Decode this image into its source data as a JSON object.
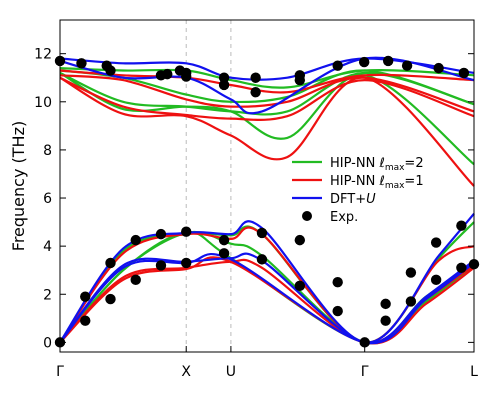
{
  "chart_data": {
    "type": "line",
    "title": "",
    "ylabel": "Frequency (THz)",
    "xlabel": "",
    "ylim": [
      -0.4,
      13.4
    ],
    "yticks": [
      0,
      2,
      4,
      6,
      8,
      10,
      12
    ],
    "x_high_symmetry_points": [
      {
        "label": "Γ",
        "x": 0.0
      },
      {
        "label": "X",
        "x": 1.0
      },
      {
        "label": "U",
        "x": 1.354
      },
      {
        "label": "Γ",
        "x": 2.414
      },
      {
        "label": "L",
        "x": 3.28
      }
    ],
    "vertical_guides_at": [
      1.0,
      1.354
    ],
    "grid": false,
    "legend": {
      "placement": "center-right",
      "entries": [
        {
          "label_main": "HIP-NN ",
          "label_math": "ℓ",
          "label_sub": "max",
          "label_tail": "=2",
          "color": "#22bb22",
          "kind": "line"
        },
        {
          "label_main": "HIP-NN ",
          "label_math": "ℓ",
          "label_sub": "max",
          "label_tail": "=1",
          "color": "#ee1111",
          "kind": "line"
        },
        {
          "label_main": "DFT+",
          "label_math": "U",
          "label_sub": "",
          "label_tail": "",
          "color": "#1111ee",
          "kind": "line"
        },
        {
          "label_main": "Exp.",
          "label_math": "",
          "label_sub": "",
          "label_tail": "",
          "color": "#000000",
          "kind": "marker"
        }
      ]
    },
    "series": [
      {
        "method": "HIP-NN lmax=2",
        "color": "#22bb22",
        "bands": [
          [
            [
              0,
              0
            ],
            [
              0.5,
              3.0
            ],
            [
              1.0,
              4.55
            ],
            [
              1.354,
              3.5
            ],
            [
              2.414,
              0
            ],
            [
              2.9,
              1.7
            ],
            [
              3.28,
              3.2
            ]
          ],
          [
            [
              0,
              0
            ],
            [
              0.5,
              3.0
            ],
            [
              1.0,
              4.55
            ],
            [
              1.354,
              4.1
            ],
            [
              1.6,
              3.6
            ],
            [
              2.414,
              0
            ],
            [
              2.9,
              1.9
            ],
            [
              3.28,
              3.3
            ]
          ],
          [
            [
              0,
              0
            ],
            [
              0.5,
              3.8
            ],
            [
              1.0,
              4.5
            ],
            [
              1.354,
              4.45
            ],
            [
              1.6,
              4.5
            ],
            [
              2.414,
              0
            ],
            [
              3.0,
              3.5
            ],
            [
              3.28,
              5.0
            ]
          ],
          [
            [
              0,
              11.2
            ],
            [
              0.5,
              9.7
            ],
            [
              1.0,
              9.8
            ],
            [
              1.354,
              9.6
            ],
            [
              1.8,
              8.5
            ],
            [
              2.414,
              11.1
            ],
            [
              3.28,
              7.4
            ]
          ],
          [
            [
              0,
              11.2
            ],
            [
              0.5,
              10.0
            ],
            [
              1.0,
              9.8
            ],
            [
              1.354,
              9.6
            ],
            [
              1.8,
              9.6
            ],
            [
              2.414,
              11.2
            ],
            [
              3.28,
              9.9
            ]
          ],
          [
            [
              0,
              11.3
            ],
            [
              0.5,
              11.0
            ],
            [
              1.0,
              10.3
            ],
            [
              1.354,
              10.0
            ],
            [
              1.8,
              10.2
            ],
            [
              2.414,
              11.3
            ],
            [
              3.28,
              9.9
            ]
          ],
          [
            [
              0,
              11.4
            ],
            [
              0.5,
              11.3
            ],
            [
              1.0,
              11.3
            ],
            [
              1.354,
              10.9
            ],
            [
              1.8,
              10.6
            ],
            [
              2.414,
              11.3
            ],
            [
              3.28,
              11.1
            ]
          ]
        ]
      },
      {
        "method": "HIP-NN lmax=1",
        "color": "#ee1111",
        "bands": [
          [
            [
              0,
              0
            ],
            [
              0.5,
              2.6
            ],
            [
              1.0,
              3.05
            ],
            [
              1.354,
              3.35
            ],
            [
              2.414,
              0
            ],
            [
              2.9,
              1.6
            ],
            [
              3.28,
              3.1
            ]
          ],
          [
            [
              0,
              0
            ],
            [
              0.5,
              2.7
            ],
            [
              1.0,
              3.1
            ],
            [
              1.354,
              3.35
            ],
            [
              1.6,
              3.1
            ],
            [
              2.414,
              0
            ],
            [
              2.9,
              1.8
            ],
            [
              3.28,
              3.2
            ]
          ],
          [
            [
              0,
              0
            ],
            [
              0.5,
              3.7
            ],
            [
              1.0,
              4.5
            ],
            [
              1.354,
              4.3
            ],
            [
              1.6,
              4.5
            ],
            [
              2.414,
              0
            ],
            [
              3.0,
              3.4
            ],
            [
              3.28,
              4.0
            ]
          ],
          [
            [
              0,
              11.0
            ],
            [
              0.5,
              9.5
            ],
            [
              1.0,
              9.4
            ],
            [
              1.354,
              8.6
            ],
            [
              1.8,
              7.7
            ],
            [
              2.414,
              11.0
            ],
            [
              3.28,
              6.5
            ]
          ],
          [
            [
              0,
              11.0
            ],
            [
              0.5,
              9.8
            ],
            [
              1.0,
              9.45
            ],
            [
              1.354,
              9.3
            ],
            [
              1.8,
              9.4
            ],
            [
              2.414,
              10.9
            ],
            [
              3.28,
              9.4
            ]
          ],
          [
            [
              0,
              11.1
            ],
            [
              0.5,
              10.9
            ],
            [
              1.0,
              10.1
            ],
            [
              1.354,
              9.8
            ],
            [
              1.8,
              10.0
            ],
            [
              2.414,
              11.0
            ],
            [
              3.28,
              9.6
            ]
          ],
          [
            [
              0,
              11.3
            ],
            [
              0.5,
              11.1
            ],
            [
              1.0,
              11.0
            ],
            [
              1.354,
              10.7
            ],
            [
              1.8,
              10.4
            ],
            [
              2.414,
              11.1
            ],
            [
              3.28,
              10.9
            ]
          ]
        ]
      },
      {
        "method": "DFT+U",
        "color": "#1111ee",
        "bands": [
          [
            [
              0,
              0
            ],
            [
              0.5,
              3.1
            ],
            [
              1.0,
              3.3
            ],
            [
              1.354,
              3.45
            ],
            [
              2.414,
              0
            ],
            [
              2.9,
              1.8
            ],
            [
              3.28,
              3.3
            ]
          ],
          [
            [
              0,
              0
            ],
            [
              0.5,
              3.2
            ],
            [
              1.0,
              3.35
            ],
            [
              1.354,
              3.5
            ],
            [
              1.6,
              3.4
            ],
            [
              2.414,
              0
            ],
            [
              2.9,
              1.9
            ],
            [
              3.28,
              3.4
            ]
          ],
          [
            [
              0,
              0
            ],
            [
              0.5,
              3.9
            ],
            [
              1.0,
              4.55
            ],
            [
              1.354,
              4.5
            ],
            [
              1.6,
              4.75
            ],
            [
              2.414,
              0
            ],
            [
              3.0,
              3.6
            ],
            [
              3.28,
              5.35
            ]
          ],
          [
            [
              0,
              11.7
            ],
            [
              0.5,
              11.0
            ],
            [
              1.0,
              11.0
            ],
            [
              1.354,
              10.1
            ],
            [
              1.6,
              9.6
            ],
            [
              2.414,
              11.8
            ],
            [
              3.28,
              10.9
            ]
          ],
          [
            [
              0,
              11.8
            ],
            [
              0.5,
              11.6
            ],
            [
              1.0,
              11.6
            ],
            [
              1.354,
              11.0
            ],
            [
              1.8,
              11.0
            ],
            [
              2.414,
              11.8
            ],
            [
              3.28,
              11.2
            ]
          ]
        ]
      }
    ],
    "experimental_points": [
      [
        0,
        11.7
      ],
      [
        0.17,
        11.6
      ],
      [
        0.37,
        11.5
      ],
      [
        0.4,
        11.3
      ],
      [
        0.8,
        11.1
      ],
      [
        0.85,
        11.15
      ],
      [
        0.95,
        11.3
      ],
      [
        1.0,
        11.05
      ],
      [
        1.0,
        11.2
      ],
      [
        1.3,
        11.0
      ],
      [
        1.3,
        10.7
      ],
      [
        1.55,
        11.0
      ],
      [
        1.55,
        10.4
      ],
      [
        1.9,
        11.1
      ],
      [
        1.9,
        10.9
      ],
      [
        2.2,
        11.5
      ],
      [
        2.41,
        11.65
      ],
      [
        2.6,
        11.7
      ],
      [
        2.75,
        11.5
      ],
      [
        3.0,
        11.4
      ],
      [
        3.2,
        11.2
      ],
      [
        0,
        0
      ],
      [
        0.2,
        0.9
      ],
      [
        0.2,
        1.9
      ],
      [
        0.4,
        1.8
      ],
      [
        0.4,
        3.3
      ],
      [
        0.6,
        2.6
      ],
      [
        0.6,
        4.25
      ],
      [
        0.8,
        3.2
      ],
      [
        0.8,
        4.5
      ],
      [
        1.0,
        3.3
      ],
      [
        1.0,
        4.6
      ],
      [
        1.3,
        3.7
      ],
      [
        1.3,
        4.25
      ],
      [
        1.6,
        3.45
      ],
      [
        1.6,
        4.55
      ],
      [
        1.9,
        2.35
      ],
      [
        1.9,
        4.25
      ],
      [
        2.2,
        2.5
      ],
      [
        2.2,
        1.3
      ],
      [
        2.414,
        0
      ],
      [
        2.58,
        0.9
      ],
      [
        2.58,
        1.6
      ],
      [
        2.78,
        1.7
      ],
      [
        2.78,
        2.9
      ],
      [
        2.98,
        2.6
      ],
      [
        2.98,
        4.15
      ],
      [
        3.18,
        3.1
      ],
      [
        3.18,
        4.85
      ],
      [
        3.28,
        3.25
      ]
    ]
  }
}
